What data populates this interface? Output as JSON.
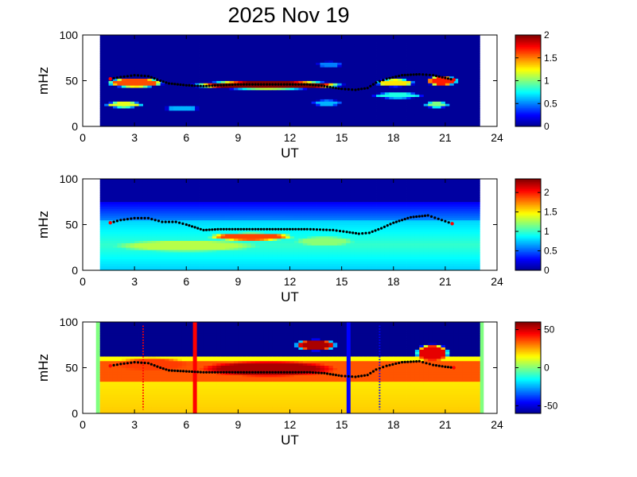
{
  "figure_title": "2025 Nov 19",
  "colors": {
    "jet": [
      "#00008f",
      "#0000ff",
      "#0080ff",
      "#00ffff",
      "#80ff80",
      "#ffff00",
      "#ff8000",
      "#ff0000",
      "#800000"
    ],
    "ridge": "#000000",
    "ridge_edge": "#ff0000",
    "marker_red": "#ff0000",
    "marker_blue": "#0000ff",
    "edge_green": "#80ff80"
  },
  "chart_data": [
    {
      "type": "heatmap",
      "xlabel": "UT",
      "ylabel": "mHz",
      "xlim": [
        0,
        24
      ],
      "ylim": [
        0,
        100
      ],
      "xticks": [
        0,
        3,
        6,
        9,
        12,
        15,
        18,
        21,
        24
      ],
      "yticks": [
        0,
        50,
        100
      ],
      "data_range_ut": [
        1,
        23
      ],
      "colorbar": {
        "min": 0,
        "max": 2,
        "ticks": [
          0,
          0.5,
          1,
          1.5,
          2
        ]
      },
      "ridge_points": [
        [
          1.6,
          52
        ],
        [
          2.2,
          54
        ],
        [
          3,
          56
        ],
        [
          3.8,
          55
        ],
        [
          4.5,
          50
        ],
        [
          5,
          47
        ],
        [
          6,
          45
        ],
        [
          7,
          44
        ],
        [
          8,
          45
        ],
        [
          9,
          46
        ],
        [
          10,
          46
        ],
        [
          11,
          46
        ],
        [
          12,
          46
        ],
        [
          13,
          46
        ],
        [
          14,
          44
        ],
        [
          15,
          41
        ],
        [
          15.8,
          40
        ],
        [
          16.5,
          42
        ],
        [
          17,
          48
        ],
        [
          17.6,
          52
        ],
        [
          18.5,
          56
        ],
        [
          19.5,
          57
        ],
        [
          20.3,
          56
        ],
        [
          21,
          53
        ],
        [
          21.5,
          51
        ]
      ],
      "features": [
        {
          "ut": [
            6.5,
            15.0
          ],
          "mhz": [
            42,
            49
          ],
          "value": 2.0
        },
        {
          "ut": [
            1.6,
            4.5
          ],
          "mhz": [
            44,
            52
          ],
          "value": 1.6
        },
        {
          "ut": [
            1.5,
            3.3
          ],
          "mhz": [
            22,
            26
          ],
          "value": 1.2
        },
        {
          "ut": [
            17.2,
            19.0
          ],
          "mhz": [
            45,
            51
          ],
          "value": 1.3
        },
        {
          "ut": [
            20.1,
            21.5
          ],
          "mhz": [
            46,
            54
          ],
          "value": 1.7
        },
        {
          "ut": [
            20.0,
            21.0
          ],
          "mhz": [
            22,
            26
          ],
          "value": 1.0
        },
        {
          "ut": [
            17.0,
            19.5
          ],
          "mhz": [
            32,
            36
          ],
          "value": 0.8
        },
        {
          "ut": [
            5.0,
            6.5
          ],
          "mhz": [
            18,
            22
          ],
          "value": 0.6
        },
        {
          "ut": [
            13.5,
            14.8
          ],
          "mhz": [
            24,
            28
          ],
          "value": 0.6
        },
        {
          "ut": [
            13.8,
            14.8
          ],
          "mhz": [
            66,
            70
          ],
          "value": 0.5
        }
      ]
    },
    {
      "type": "heatmap",
      "xlabel": "UT",
      "ylabel": "mHz",
      "xlim": [
        0,
        24
      ],
      "ylim": [
        0,
        100
      ],
      "xticks": [
        0,
        3,
        6,
        9,
        12,
        15,
        18,
        21,
        24
      ],
      "yticks": [
        0,
        50,
        100
      ],
      "data_range_ut": [
        1,
        23
      ],
      "colorbar": {
        "min": 0,
        "max": 2.35,
        "ticks": [
          0,
          0.5,
          1,
          1.5,
          2
        ]
      },
      "ridge_points": [
        [
          1.6,
          52
        ],
        [
          2.2,
          55
        ],
        [
          3,
          57
        ],
        [
          3.8,
          57
        ],
        [
          4.6,
          53
        ],
        [
          5.4,
          53
        ],
        [
          6,
          50
        ],
        [
          7,
          44
        ],
        [
          8,
          45
        ],
        [
          9,
          45
        ],
        [
          10,
          45
        ],
        [
          11,
          45
        ],
        [
          12,
          45
        ],
        [
          13,
          45
        ],
        [
          14.5,
          44
        ],
        [
          15.3,
          42
        ],
        [
          16,
          40
        ],
        [
          16.6,
          41
        ],
        [
          17.3,
          46
        ],
        [
          18,
          52
        ],
        [
          19,
          58
        ],
        [
          20,
          60
        ],
        [
          20.8,
          55
        ],
        [
          21.4,
          51
        ]
      ],
      "features": [
        {
          "ut": [
            7.5,
            12.0
          ],
          "mhz": [
            34,
            40
          ],
          "value": 1.9
        },
        {
          "ut": [
            2.0,
            10.0
          ],
          "mhz": [
            22,
            32
          ],
          "value": 1.3
        },
        {
          "ut": [
            12.5,
            15.5
          ],
          "mhz": [
            28,
            36
          ],
          "value": 1.2
        },
        {
          "ut": [
            6.5,
            14.0
          ],
          "mhz": [
            50,
            58
          ],
          "value": 0.55
        }
      ]
    },
    {
      "type": "heatmap",
      "xlabel": "UT",
      "ylabel": "mHz",
      "xlim": [
        0,
        24
      ],
      "ylim": [
        0,
        100
      ],
      "xticks": [
        0,
        3,
        6,
        9,
        12,
        15,
        18,
        21,
        24
      ],
      "yticks": [
        0,
        50,
        100
      ],
      "data_range_ut": [
        1,
        23
      ],
      "colorbar": {
        "min": -60,
        "max": 60,
        "ticks": [
          -50,
          0,
          50
        ]
      },
      "ridge_points": [
        [
          1.6,
          52
        ],
        [
          2.2,
          54
        ],
        [
          3,
          56
        ],
        [
          3.8,
          55
        ],
        [
          4.5,
          50
        ],
        [
          5,
          47
        ],
        [
          6,
          46
        ],
        [
          7,
          45
        ],
        [
          8,
          45
        ],
        [
          9,
          45
        ],
        [
          10,
          45
        ],
        [
          11,
          45
        ],
        [
          12,
          45
        ],
        [
          13,
          45
        ],
        [
          14,
          44
        ],
        [
          15,
          41
        ],
        [
          15.8,
          40
        ],
        [
          16.5,
          42
        ],
        [
          17,
          48
        ],
        [
          17.6,
          52
        ],
        [
          18.5,
          56
        ],
        [
          19.5,
          57
        ],
        [
          20.3,
          53
        ],
        [
          21,
          51
        ],
        [
          21.5,
          50
        ]
      ],
      "vertical_markers": [
        {
          "ut": 6.5,
          "color": "red",
          "style": "solid"
        },
        {
          "ut": 15.4,
          "color": "blue",
          "style": "solid"
        },
        {
          "ut": 3.5,
          "color": "red",
          "style": "dotted"
        },
        {
          "ut": 17.2,
          "color": "blue",
          "style": "dotted"
        }
      ],
      "features": [
        {
          "ut": [
            7.0,
            14.5
          ],
          "mhz": [
            42,
            56
          ],
          "value": 55
        },
        {
          "ut": [
            12.5,
            14.5
          ],
          "mhz": [
            70,
            80
          ],
          "value": 55
        },
        {
          "ut": [
            19.5,
            21.0
          ],
          "mhz": [
            58,
            75
          ],
          "value": 48
        },
        {
          "ut": [
            2.0,
            6.0
          ],
          "mhz": [
            48,
            60
          ],
          "value": 38
        },
        {
          "ut": [
            6.0,
            12.0
          ],
          "mhz": [
            20,
            30
          ],
          "value": 12
        },
        {
          "ut": [
            14.0,
            20.0
          ],
          "mhz": [
            14,
            24
          ],
          "value": 10
        }
      ]
    }
  ]
}
